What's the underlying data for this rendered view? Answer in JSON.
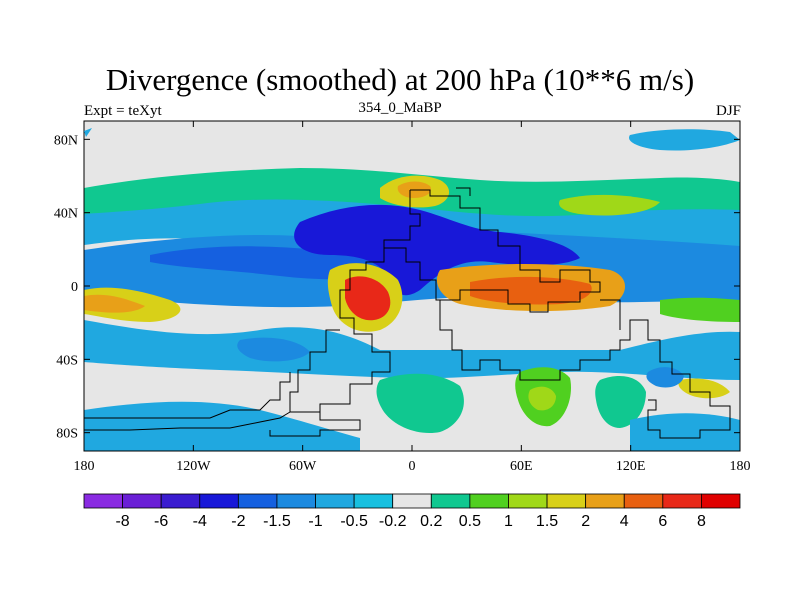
{
  "header": {
    "title": "Divergence (smoothed) at 200 hPa (10**6 m/s)",
    "left": "Expt = teXyt",
    "center": "354_0_MaBP",
    "right": "DJF"
  },
  "axes": {
    "x_labels": [
      "180",
      "120W",
      "60W",
      "0",
      "60E",
      "120E",
      "180"
    ],
    "x_values": [
      -180,
      -120,
      -60,
      0,
      60,
      120,
      180
    ],
    "y_labels": [
      "80N",
      "40N",
      "0",
      "40S",
      "80S"
    ],
    "y_values": [
      80,
      40,
      0,
      -40,
      -80
    ],
    "lon_range": [
      -180,
      180
    ],
    "lat_range": [
      -90,
      90
    ]
  },
  "colorbar": {
    "labels": [
      "-8",
      "-6",
      "-4",
      "-2",
      "-1.5",
      "-1",
      "-0.5",
      "-0.2",
      "0.2",
      "0.5",
      "1",
      "1.5",
      "2",
      "4",
      "6",
      "8"
    ],
    "colors": [
      "#8a2be2",
      "#6a1fd6",
      "#3a1cd0",
      "#1818d8",
      "#1560e0",
      "#1c8ae0",
      "#20a8e0",
      "#18c0e0",
      "#e6e6e6",
      "#10c890",
      "#50d020",
      "#a0d818",
      "#d8d018",
      "#e8a018",
      "#e86010",
      "#e82818",
      "#e00000"
    ]
  },
  "map_blobs": [
    {
      "name": "north-green-band",
      "level": "0.5",
      "color": "#10c890",
      "lon": -140,
      "lat": 48
    },
    {
      "name": "north-yellow-blob",
      "level": "2",
      "color": "#d8d018",
      "lon": 0,
      "lat": 52
    },
    {
      "name": "equator-red-atlantic",
      "level": "6",
      "color": "#e82818",
      "lon": -25,
      "lat": -10
    },
    {
      "name": "equator-red-indian",
      "level": "6",
      "color": "#e86010",
      "lon": 80,
      "lat": -5
    },
    {
      "name": "equator-orange-east-pacific",
      "level": "4",
      "color": "#e8a018",
      "lon": -170,
      "lat": -15
    },
    {
      "name": "dark-blue-convergence",
      "level": "-4",
      "color": "#1818d8",
      "lon": 10,
      "lat": 30
    }
  ]
}
